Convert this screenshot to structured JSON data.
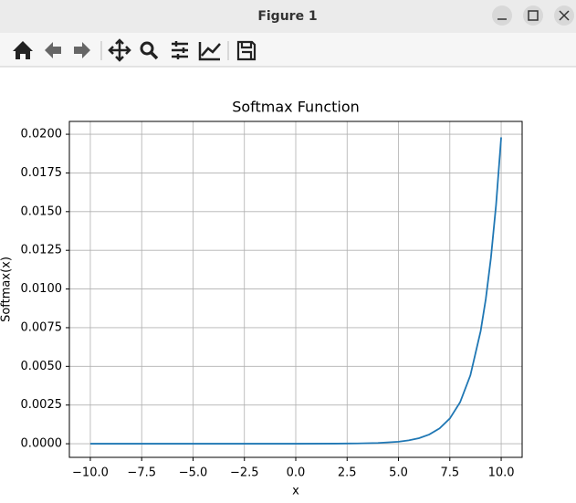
{
  "window": {
    "title": "Figure 1"
  },
  "chart_data": {
    "type": "line",
    "title": "Softmax Function",
    "x_label": "x",
    "y_label": "Softmax(x)",
    "x": [
      -10,
      -5,
      0,
      2,
      3,
      4,
      5,
      5.5,
      6,
      6.5,
      7,
      7.5,
      8,
      8.5,
      9,
      9.25,
      9.5,
      9.75,
      10
    ],
    "series": [
      {
        "name": "Softmax(x)",
        "color": "#1f77b4",
        "values": [
          0,
          0,
          0,
          1e-05,
          2e-05,
          5e-05,
          0.00013,
          0.00022,
          0.00036,
          0.0006,
          0.00099,
          0.00163,
          0.00268,
          0.00442,
          0.00728,
          0.00935,
          0.01201,
          0.01542,
          0.0198
        ]
      }
    ],
    "xlim": [
      -11.02,
      11.02
    ],
    "ylim": [
      -0.00088,
      0.02083
    ],
    "xticks": [
      {
        "value": -10,
        "label": "−10.0"
      },
      {
        "value": -7.5,
        "label": "−7.5"
      },
      {
        "value": -5,
        "label": "−5.0"
      },
      {
        "value": -2.5,
        "label": "−2.5"
      },
      {
        "value": 0,
        "label": "0.0"
      },
      {
        "value": 2.5,
        "label": "2.5"
      },
      {
        "value": 5,
        "label": "5.0"
      },
      {
        "value": 7.5,
        "label": "7.5"
      },
      {
        "value": 10,
        "label": "10.0"
      }
    ],
    "yticks": [
      {
        "value": 0,
        "label": "0.0000"
      },
      {
        "value": 0.0025,
        "label": "0.0025"
      },
      {
        "value": 0.005,
        "label": "0.0050"
      },
      {
        "value": 0.0075,
        "label": "0.0075"
      },
      {
        "value": 0.01,
        "label": "0.0100"
      },
      {
        "value": 0.0125,
        "label": "0.0125"
      },
      {
        "value": 0.015,
        "label": "0.0150"
      },
      {
        "value": 0.0175,
        "label": "0.0175"
      },
      {
        "value": 0.02,
        "label": "0.0200"
      }
    ],
    "grid": true
  }
}
